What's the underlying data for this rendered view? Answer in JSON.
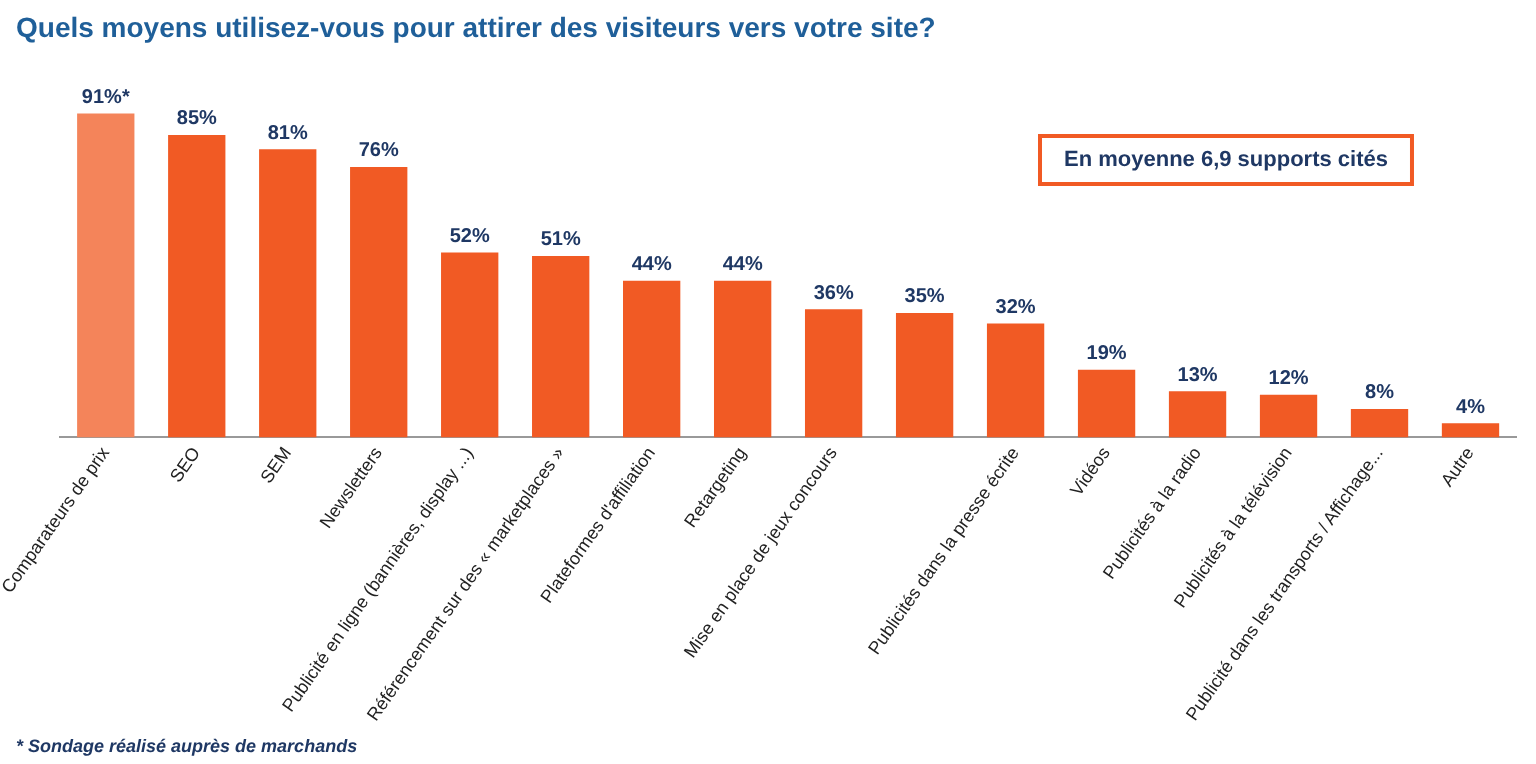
{
  "chart_data": {
    "type": "bar",
    "title": "Quels moyens utilisez-vous pour attirer des visiteurs vers votre site?",
    "categories": [
      "Comparateurs de prix",
      "SEO",
      "SEM",
      "Newsletters",
      "Publicité en ligne (bannières, display ...)",
      "Référencement sur des « marketplaces »",
      "Plateformes d'affiliation",
      "Retargeting",
      "Mise en place de jeux concours",
      null,
      "Publicités dans la presse écrite",
      "Vidéos",
      "Publicités à la radio",
      "Publicités à la télévision",
      "Publicité dans les transports / Affichage...",
      "Autre"
    ],
    "values": [
      91,
      85,
      81,
      76,
      52,
      51,
      44,
      44,
      36,
      35,
      32,
      19,
      13,
      12,
      8,
      4
    ],
    "colors": [
      "#f4845a",
      "#f15a24",
      "#f15a24",
      "#f15a24",
      "#f15a24",
      "#f15a24",
      "#f15a24",
      "#f15a24",
      "#f15a24",
      "#f15a24",
      "#f15a24",
      "#f15a24",
      "#f15a24",
      "#f15a24",
      "#f15a24",
      "#f15a24"
    ],
    "value_labels": [
      "91%*",
      "85%",
      "81%",
      "76%",
      "52%",
      "51%",
      "44%",
      "44%",
      "36%",
      "35%",
      "32%",
      "19%",
      "13%",
      "12%",
      "8%",
      "4%"
    ],
    "annotations": [
      "En moyenne 6,9 supports cités",
      "* Sondage réalisé auprès de marchands"
    ],
    "grid": false,
    "legend": false
  }
}
